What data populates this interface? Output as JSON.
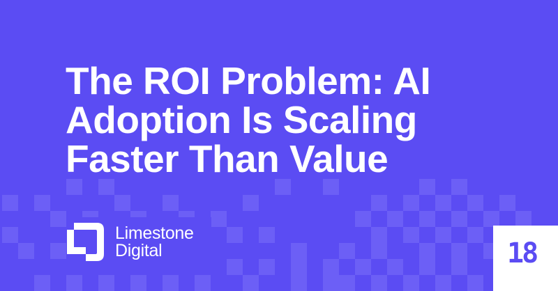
{
  "title": "The ROI Problem: AI Adoption Is Scaling Faster Than Value",
  "brand": {
    "line1": "Limestone",
    "line2": "Digital"
  },
  "badge": {
    "number": "18"
  },
  "colors": {
    "background": "#5b4cf3",
    "pattern": "#6c5ff6",
    "text": "#ffffff"
  }
}
